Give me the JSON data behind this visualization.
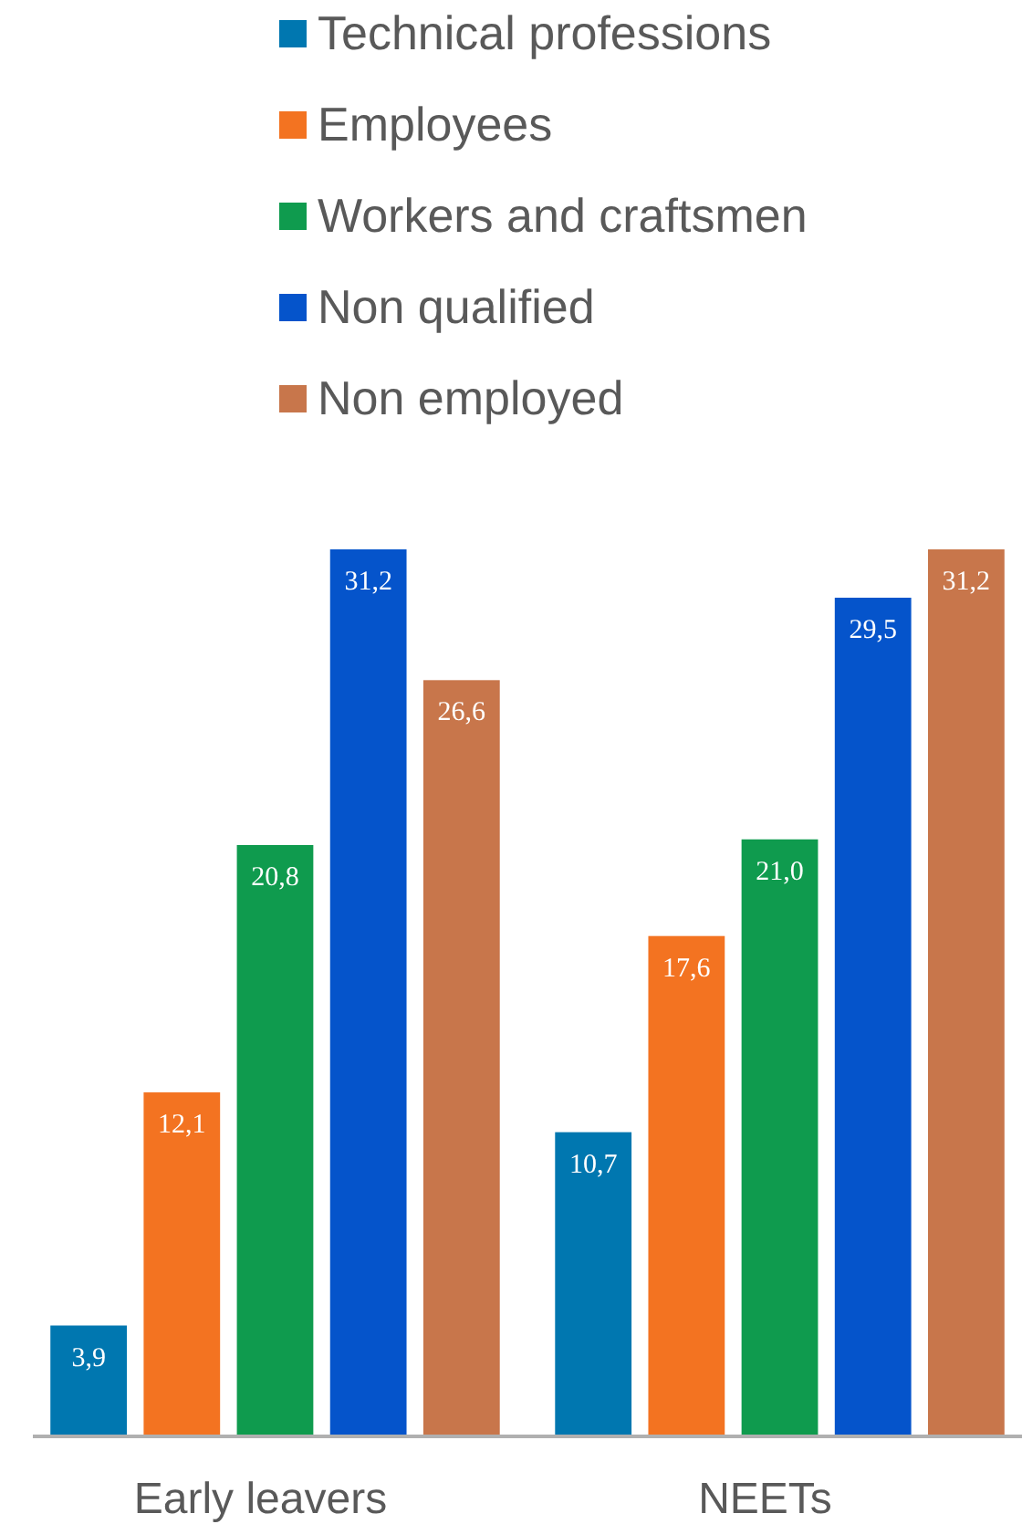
{
  "chart_data": {
    "type": "bar",
    "categories": [
      "Early leavers",
      "NEETs"
    ],
    "legend": "top",
    "series": [
      {
        "name": "Technical professions",
        "color": "#0077b0",
        "values": [
          3.9,
          10.7
        ],
        "value_labels": [
          "3,9",
          "10,7"
        ]
      },
      {
        "name": "Employees",
        "color": "#f37321",
        "values": [
          12.1,
          17.6
        ],
        "value_labels": [
          "12,1",
          "17,6"
        ]
      },
      {
        "name": "Workers and craftsmen",
        "color": "#0f9b4e",
        "values": [
          20.8,
          21.0
        ],
        "value_labels": [
          "20,8",
          "21,0"
        ]
      },
      {
        "name": "Non qualified",
        "color": "#0554cb",
        "values": [
          31.2,
          29.5
        ],
        "value_labels": [
          "31,2",
          "29,5"
        ]
      },
      {
        "name": "Non employed",
        "color": "#c8764b",
        "values": [
          26.6,
          31.2
        ],
        "value_labels": [
          "26,6",
          "31,2"
        ]
      }
    ]
  }
}
